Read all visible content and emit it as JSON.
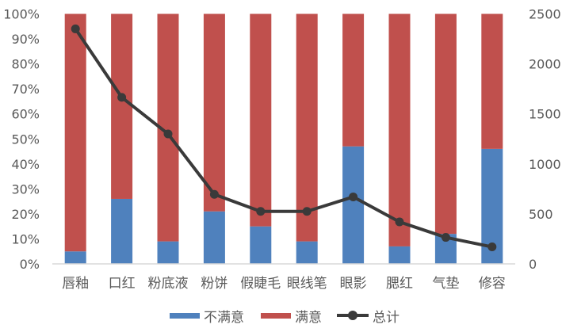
{
  "chart_data": {
    "type": "bar",
    "subtype": "stacked-percent-bar-with-line",
    "title": "",
    "categories": [
      "唇釉",
      "口红",
      "粉底液",
      "粉饼",
      "假睫毛",
      "眼线笔",
      "眼影",
      "腮红",
      "气垫",
      "修容"
    ],
    "series": [
      {
        "name": "不满意",
        "type": "bar",
        "axis": "left",
        "color": "#4F81BD",
        "values": [
          0.05,
          0.26,
          0.09,
          0.21,
          0.15,
          0.09,
          0.47,
          0.07,
          0.12,
          0.46
        ]
      },
      {
        "name": "满意",
        "type": "bar",
        "axis": "left",
        "color": "#C0504D",
        "values": [
          0.95,
          0.74,
          0.91,
          0.79,
          0.85,
          0.91,
          0.53,
          0.93,
          0.88,
          0.54
        ]
      },
      {
        "name": "总计",
        "type": "line",
        "axis": "right",
        "color": "#3A3A3A",
        "values": [
          2350,
          1665,
          1300,
          695,
          525,
          525,
          670,
          420,
          265,
          170
        ]
      }
    ],
    "left_axis": {
      "ticks": [
        "0%",
        "10%",
        "20%",
        "30%",
        "40%",
        "50%",
        "60%",
        "70%",
        "80%",
        "90%",
        "100%"
      ],
      "range": [
        0,
        1
      ]
    },
    "right_axis": {
      "ticks": [
        "0",
        "500",
        "1000",
        "1500",
        "2000",
        "2500"
      ],
      "range": [
        0,
        2500
      ]
    },
    "xlabel": "",
    "ylabel": "",
    "grid": false,
    "legend_position": "bottom"
  },
  "legend": [
    {
      "label": "不满意",
      "kind": "bar",
      "color": "#4F81BD"
    },
    {
      "label": "满意",
      "kind": "bar",
      "color": "#C0504D"
    },
    {
      "label": "总计",
      "kind": "line",
      "color": "#3A3A3A"
    }
  ]
}
